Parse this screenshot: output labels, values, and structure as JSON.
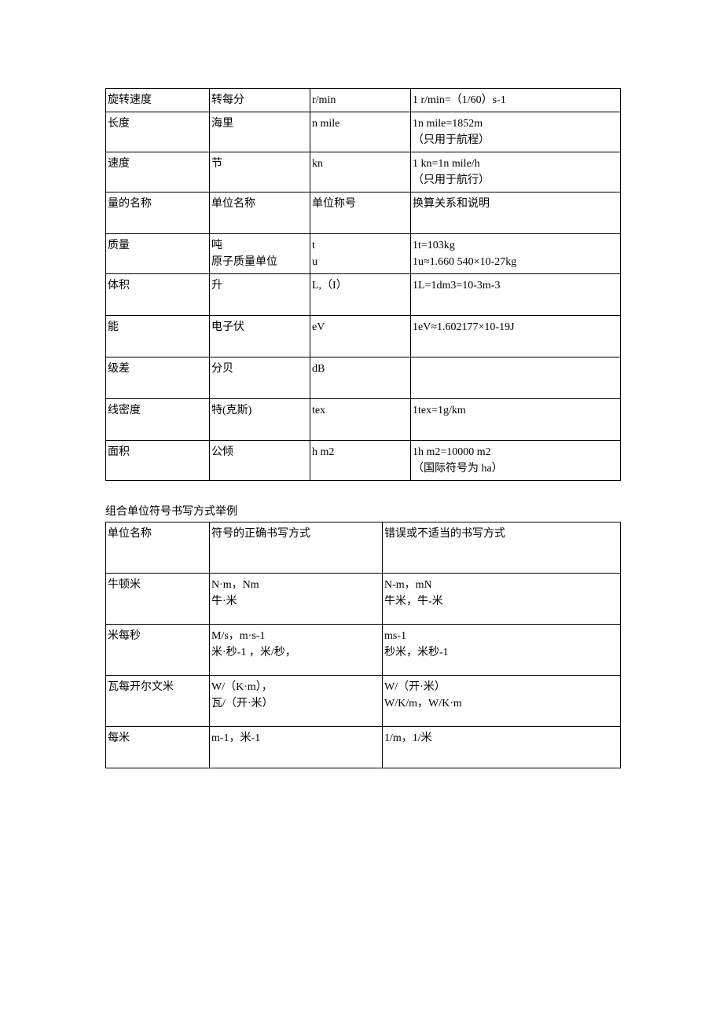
{
  "table1": {
    "rows": [
      {
        "c1": "旋转速度",
        "c2": "转每分",
        "c3": "r/min",
        "c4": "1 r/min=（1/60）s-1"
      },
      {
        "c1": "长度",
        "c2": "海里",
        "c3": "n mile",
        "c4": "1n mile=1852m\n（只用于航程）"
      },
      {
        "c1": "速度",
        "c2": "节",
        "c3": "kn",
        "c4": "1 kn=1n mile/h\n（只用于航行）"
      },
      {
        "c1": "量的名称",
        "c2": "单位名称",
        "c3": "单位称号",
        "c4": "换算关系和说明"
      },
      {
        "c1": "质量",
        "c2": "吨\n原子质量单位",
        "c3": "t\nu",
        "c4": "1t=103kg\n1u≈1.660 540×10-27kg"
      },
      {
        "c1": "体积",
        "c2": "升",
        "c3": "L,（I）",
        "c4": "1L=1dm3=10-3m-3"
      },
      {
        "c1": "能",
        "c2": "电子伏",
        "c3": "eV",
        "c4": "1eV≈1.602177×10-19J"
      },
      {
        "c1": "级差",
        "c2": "分贝",
        "c3": "dB",
        "c4": ""
      },
      {
        "c1": "线密度",
        "c2": "特(克斯)",
        "c3": "tex",
        "c4": "1tex=1g/km"
      },
      {
        "c1": "面积",
        "c2": "公倾",
        "c3": "h m2",
        "c4": "1h m2=10000 m2\n（国际符号为 ha）"
      }
    ]
  },
  "caption2": "组合单位符号书写方式举例",
  "table2": {
    "header": {
      "c1": "单位名称",
      "c2": "符号的正确书写方式",
      "c3": "错误或不适当的书写方式"
    },
    "rows": [
      {
        "c1": "牛顿米",
        "c2": "N·m，Nm\n牛·米",
        "c3": "N-m，mN\n牛米，牛-米"
      },
      {
        "c1": "米每秒",
        "c2": "M/s，m·s-1\n米·秒-1 ，米/秒，",
        "c3": "ms-1\n秒米，米秒-1"
      },
      {
        "c1": "瓦每开尔文米",
        "c2": "W/（K·m），\n瓦/（开·米）",
        "c3": "W/（开·米）\nW/K/m，W/K·m"
      },
      {
        "c1": "每米",
        "c2": "m-1，米-1",
        "c3": "1/m，1/米"
      }
    ]
  }
}
